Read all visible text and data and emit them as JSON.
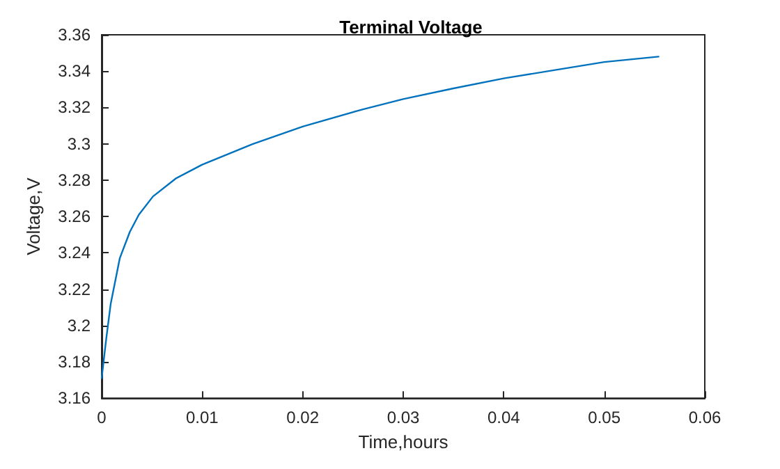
{
  "chart_data": {
    "type": "line",
    "title": "Terminal Voltage",
    "xlabel": "Time,hours",
    "ylabel": "Voltage,V",
    "x": [
      0,
      0.00046,
      0.0009,
      0.0018,
      0.0028,
      0.0037,
      0.0051,
      0.0074,
      0.01,
      0.015,
      0.02,
      0.026,
      0.03,
      0.035,
      0.04,
      0.045,
      0.05,
      0.0554
    ],
    "series": [
      {
        "color": "#0072bd",
        "values": [
          3.171,
          3.193,
          3.212,
          3.237,
          3.2515,
          3.261,
          3.271,
          3.281,
          3.2885,
          3.2998,
          3.3095,
          3.319,
          3.3246,
          3.3305,
          3.336,
          3.3405,
          3.345,
          3.348
        ]
      }
    ],
    "xlim": [
      0,
      0.06
    ],
    "xticks": [
      0,
      0.01,
      0.02,
      0.03,
      0.04,
      0.05,
      0.06
    ],
    "ylim": [
      3.16,
      3.36
    ],
    "yticks": [
      3.16,
      3.18,
      3.2,
      3.22,
      3.24,
      3.26,
      3.28,
      3.3,
      3.32,
      3.34,
      3.36
    ],
    "grid": false,
    "marker": "none",
    "line_style": "solid"
  }
}
